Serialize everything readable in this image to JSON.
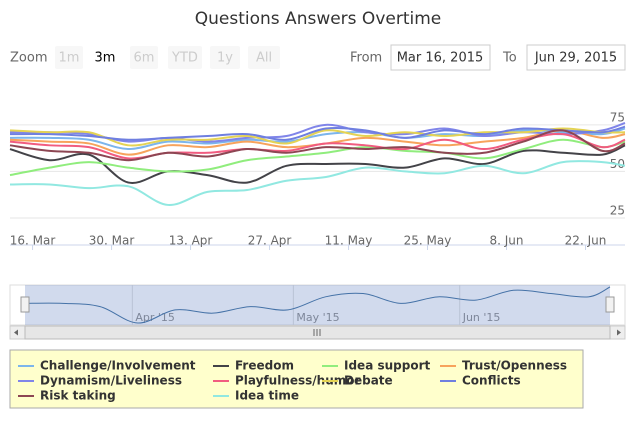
{
  "chart_data": {
    "type": "line",
    "title": "Questions Answers Overtime",
    "range_selector": {
      "zoom_label": "Zoom",
      "buttons": [
        "1m",
        "3m",
        "6m",
        "YTD",
        "1y",
        "All"
      ],
      "selected_index": 1,
      "from_label": "From",
      "from_value": "Mar 16, 2015",
      "to_label": "To",
      "to_value": "Jun 29, 2015"
    },
    "x": [
      "2015-03-12",
      "2015-03-19",
      "2015-03-26",
      "2015-04-02",
      "2015-04-09",
      "2015-04-16",
      "2015-04-23",
      "2015-04-30",
      "2015-05-07",
      "2015-05-14",
      "2015-05-21",
      "2015-05-28",
      "2015-06-04",
      "2015-06-11",
      "2015-06-18",
      "2015-06-25",
      "2015-06-29"
    ],
    "xlim": [
      "2015-03-12",
      "2015-06-29"
    ],
    "xticks": [
      {
        "value": "2015-03-16",
        "label": "16. Mar"
      },
      {
        "value": "2015-03-30",
        "label": "30. Mar"
      },
      {
        "value": "2015-04-13",
        "label": "13. Apr"
      },
      {
        "value": "2015-04-27",
        "label": "27. Apr"
      },
      {
        "value": "2015-05-11",
        "label": "11. May"
      },
      {
        "value": "2015-05-25",
        "label": "25. May"
      },
      {
        "value": "2015-06-08",
        "label": "8. Jun"
      },
      {
        "value": "2015-06-22",
        "label": "22. Jun"
      }
    ],
    "ylim": [
      10.5,
      91
    ],
    "yticks": [
      25,
      50,
      75
    ],
    "grid": true,
    "navigator_ticks": [
      {
        "value": "2015-04-01",
        "label": "Apr '15"
      },
      {
        "value": "2015-05-01",
        "label": "May '15"
      },
      {
        "value": "2015-06-01",
        "label": "Jun '15"
      }
    ],
    "series": [
      {
        "name": "Challenge/Involvement",
        "color": "#7cb5ec",
        "values": [
          68,
          68,
          67,
          62,
          66,
          65,
          67,
          66,
          70,
          71,
          68,
          70,
          69,
          72,
          71,
          70,
          73
        ]
      },
      {
        "name": "Freedom",
        "color": "#434348",
        "values": [
          62,
          56,
          59,
          44,
          50,
          48,
          44,
          53,
          54,
          54,
          52,
          57,
          54,
          61,
          60,
          59,
          64
        ]
      },
      {
        "name": "Idea support",
        "color": "#90ed7d",
        "values": [
          48,
          52,
          55,
          52,
          50,
          51,
          56,
          58,
          60,
          63,
          61,
          60,
          57,
          62,
          67,
          63,
          66
        ]
      },
      {
        "name": "Trust/Openness",
        "color": "#f7a35c",
        "values": [
          67,
          66,
          65,
          59,
          64,
          63,
          66,
          63,
          65,
          68,
          66,
          64,
          66,
          68,
          72,
          68,
          70
        ]
      },
      {
        "name": "Dynamism/Liveliness",
        "color": "#8085e9",
        "values": [
          71,
          71,
          70,
          66,
          68,
          66,
          68,
          69,
          75,
          71,
          70,
          73,
          69,
          71,
          70,
          72,
          76
        ]
      },
      {
        "name": "Playfulness/humor",
        "color": "#f15c80",
        "values": [
          66,
          64,
          63,
          57,
          60,
          60,
          62,
          61,
          65,
          64,
          62,
          67,
          62,
          67,
          70,
          63,
          67
        ]
      },
      {
        "name": "Debate",
        "color": "#e4d354",
        "values": [
          72,
          71,
          71,
          64,
          67,
          67,
          69,
          65,
          72,
          69,
          71,
          69,
          71,
          71,
          73,
          71,
          71
        ]
      },
      {
        "name": "Conflicts",
        "color": "#6f7fe0",
        "values": [
          70,
          70,
          69,
          67,
          68,
          69,
          70,
          67,
          73,
          72,
          68,
          72,
          70,
          73,
          72,
          71,
          74
        ]
      },
      {
        "name": "Risk taking",
        "color": "#8d4653",
        "values": [
          64,
          61,
          60,
          56,
          60,
          58,
          62,
          60,
          63,
          62,
          63,
          60,
          60,
          66,
          72,
          61,
          65
        ]
      },
      {
        "name": "Idea time",
        "color": "#91e8e1",
        "values": [
          43,
          43,
          41,
          42,
          32,
          39,
          40,
          45,
          47,
          52,
          50,
          49,
          53,
          49,
          55,
          55,
          53
        ]
      }
    ]
  }
}
